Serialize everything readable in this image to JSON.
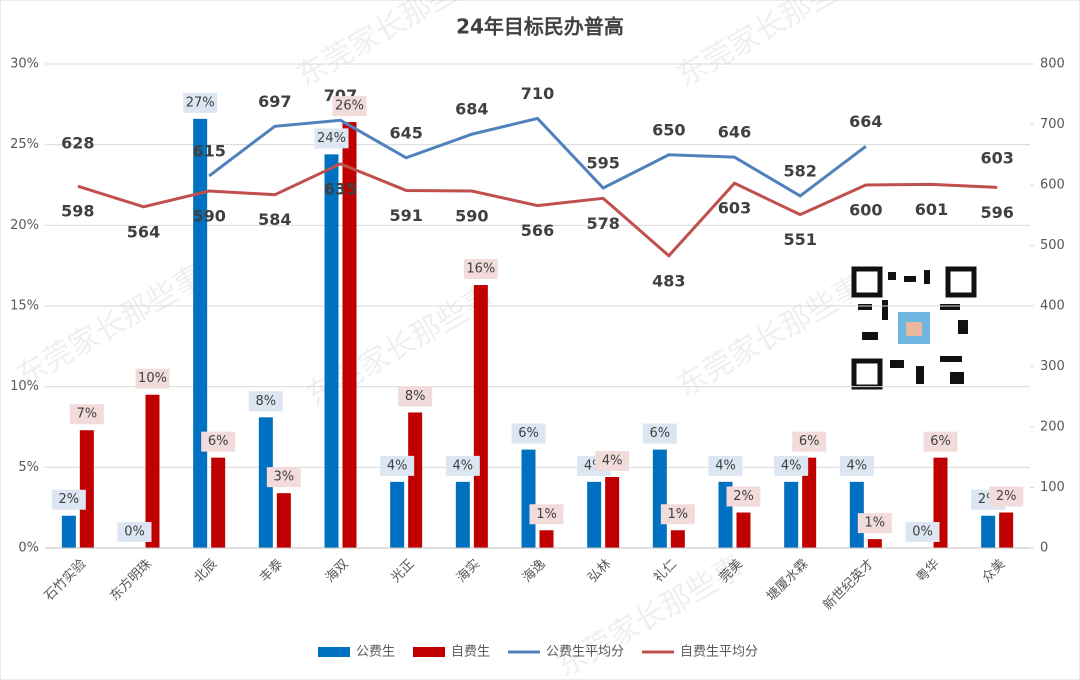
{
  "chart_data": {
    "type": "combo",
    "title": "24年目标民办普高",
    "watermark": "东莞家长那些事",
    "categories": [
      "石竹实验",
      "东方明珠",
      "北辰",
      "丰泰",
      "海双",
      "光正",
      "海实",
      "海逸",
      "弘林",
      "礼仁",
      "莞美",
      "塘厦水霖",
      "新世纪英才",
      "粤华",
      "众美"
    ],
    "series": [
      {
        "name": "公费生",
        "type": "bar",
        "color": "#0070c0",
        "values": [
          2.0,
          0,
          26.6,
          8.1,
          24.4,
          4.1,
          4.1,
          6.1,
          4.1,
          6.1,
          4.1,
          4.1,
          4.1,
          0,
          2.0
        ],
        "value_labels": [
          "2%",
          "0%",
          "27%",
          "8%",
          "24%",
          "4%",
          "4%",
          "6%",
          "4%",
          "6%",
          "4%",
          "4%",
          "4%",
          "0%",
          "2%"
        ]
      },
      {
        "name": "自费生",
        "type": "bar",
        "color": "#c00000",
        "values": [
          7.3,
          9.5,
          5.6,
          3.4,
          26.4,
          8.4,
          16.3,
          1.1,
          4.4,
          1.1,
          2.2,
          5.6,
          0.55,
          5.6,
          2.2
        ],
        "value_labels": [
          "7%",
          "10%",
          "6%",
          "3%",
          "26%",
          "8%",
          "16%",
          "1%",
          "4%",
          "1%",
          "2%",
          "6%",
          "1%",
          "6%",
          "2%"
        ]
      },
      {
        "name": "公费生平均分",
        "type": "line",
        "axis": "y2",
        "color": "#4f81bd",
        "values": [
          628,
          null,
          615,
          697,
          707,
          645,
          684,
          710,
          595,
          650,
          646,
          582,
          664,
          null,
          603
        ]
      },
      {
        "name": "自费生平均分",
        "type": "line",
        "axis": "y2",
        "color": "#c0504d",
        "values": [
          598,
          564,
          590,
          584,
          635,
          591,
          590,
          566,
          578,
          483,
          603,
          551,
          600,
          601,
          596
        ]
      }
    ],
    "ylim": [
      0,
      30
    ],
    "yticks": [
      {
        "value": 0,
        "label": "0%"
      },
      {
        "value": 5,
        "label": "5%"
      },
      {
        "value": 10,
        "label": "10%"
      },
      {
        "value": 15,
        "label": "15%"
      },
      {
        "value": 20,
        "label": "20%"
      },
      {
        "value": 25,
        "label": "25%"
      },
      {
        "value": 30,
        "label": "30%"
      }
    ],
    "y2lim": [
      0,
      800
    ],
    "y2ticks": [
      0,
      100,
      200,
      300,
      400,
      500,
      600,
      700,
      800
    ],
    "grid": true,
    "legend": "bottom"
  }
}
